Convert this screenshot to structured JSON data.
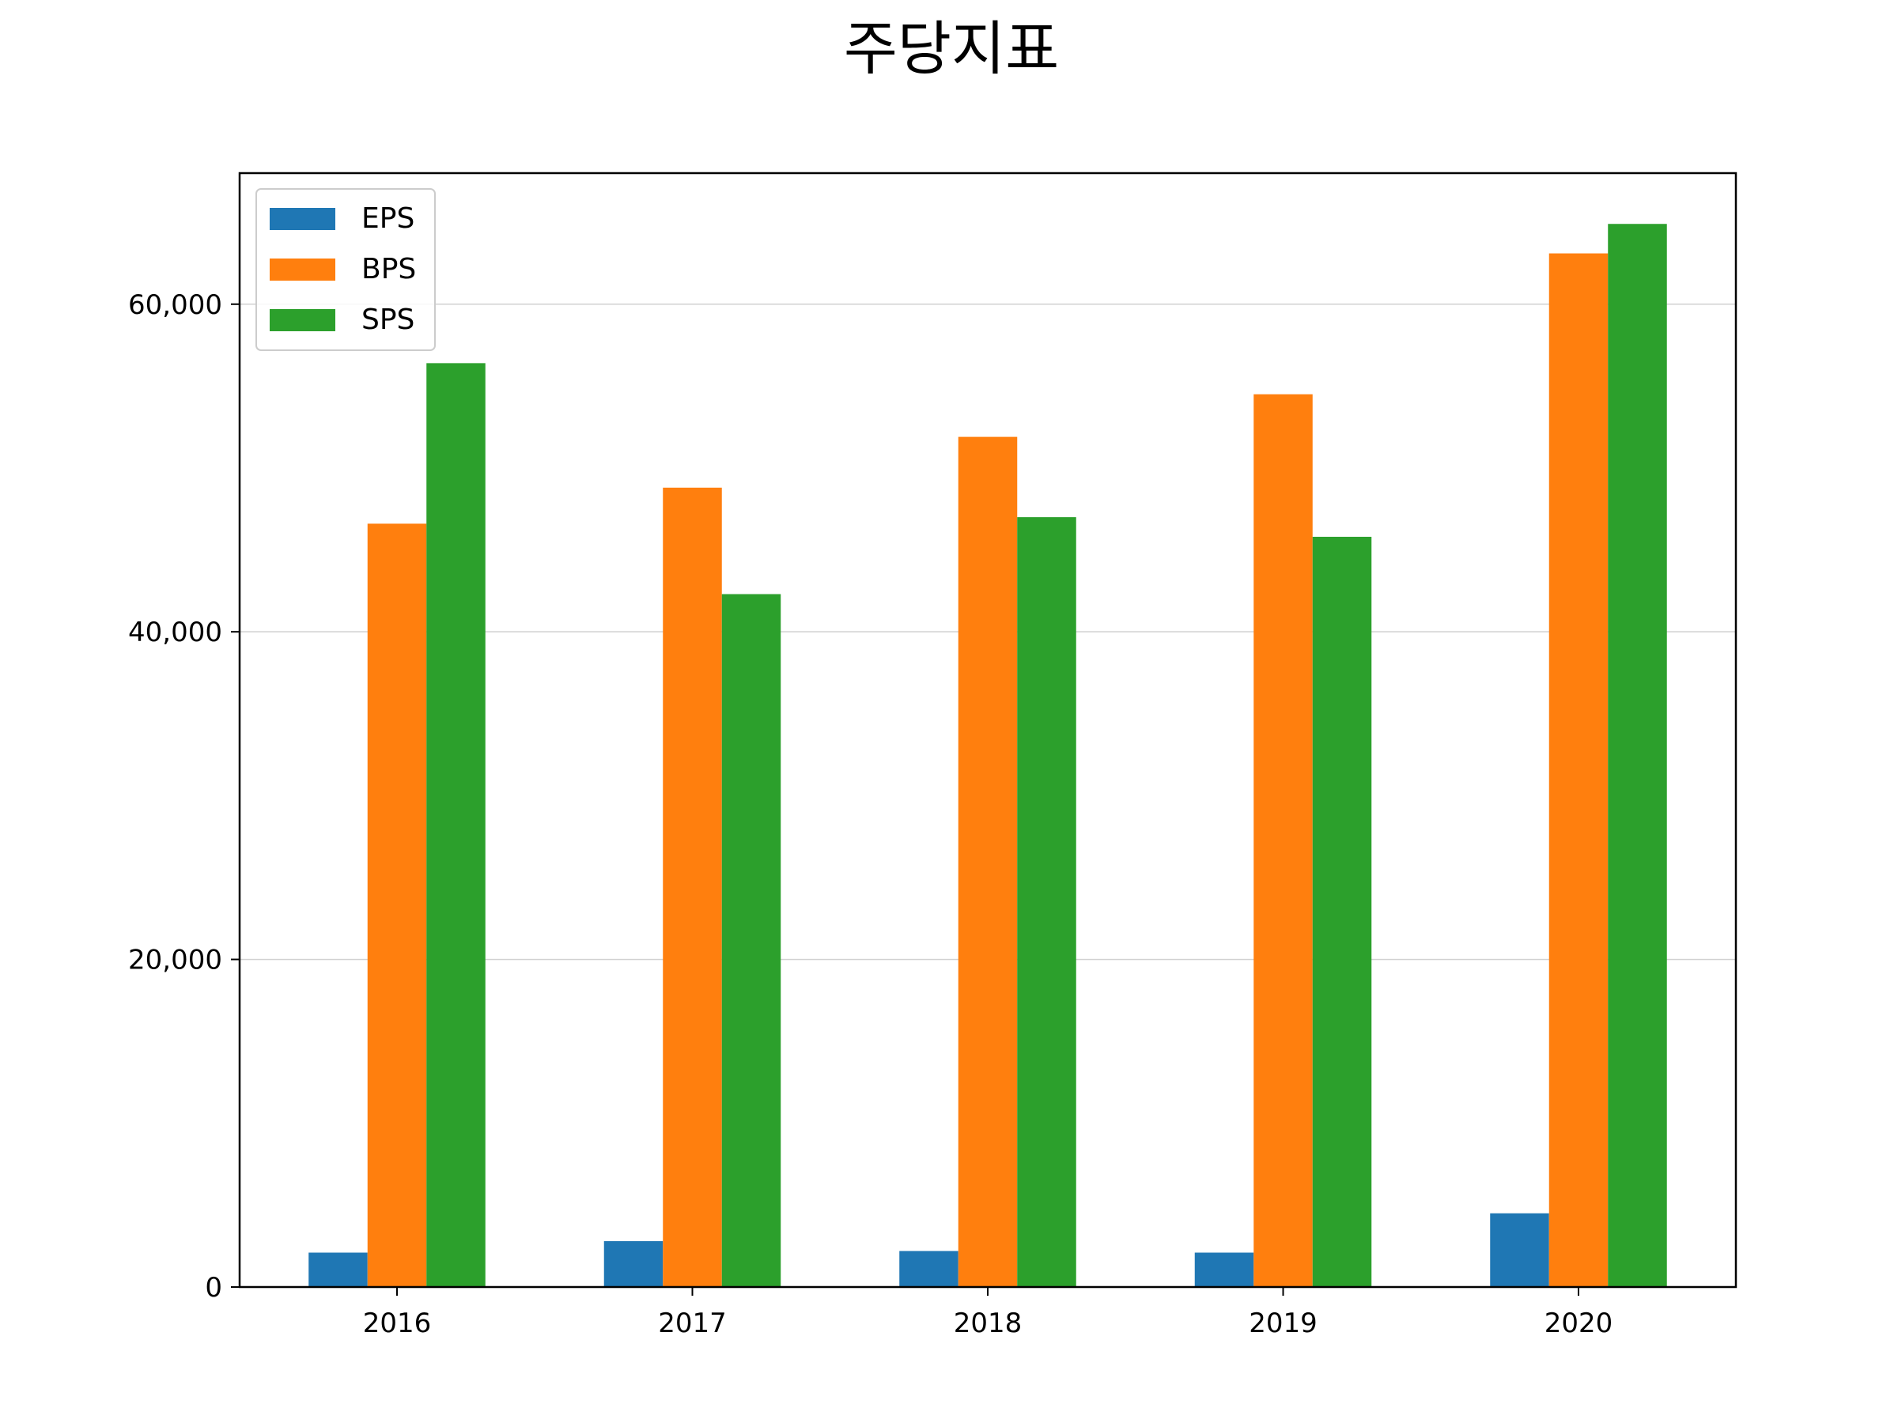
{
  "chart_data": {
    "type": "bar",
    "title": "주당지표",
    "xlabel": "",
    "ylabel": "",
    "categories": [
      "2016",
      "2017",
      "2018",
      "2019",
      "2020"
    ],
    "series": [
      {
        "name": "EPS",
        "color": "#1f77b4",
        "values": [
          2100,
          2800,
          2200,
          2100,
          4500
        ]
      },
      {
        "name": "BPS",
        "color": "#ff7f0e",
        "values": [
          46600,
          48800,
          51900,
          54500,
          63100
        ]
      },
      {
        "name": "SPS",
        "color": "#2ca02c",
        "values": [
          56400,
          42300,
          47000,
          45800,
          64900
        ]
      }
    ],
    "ylim": [
      0,
      68000
    ],
    "yticks": [
      0,
      20000,
      40000,
      60000
    ],
    "ytick_labels": [
      "0",
      "20,000",
      "40,000",
      "60,000"
    ],
    "grid": "y",
    "legend_position": "top-left"
  }
}
